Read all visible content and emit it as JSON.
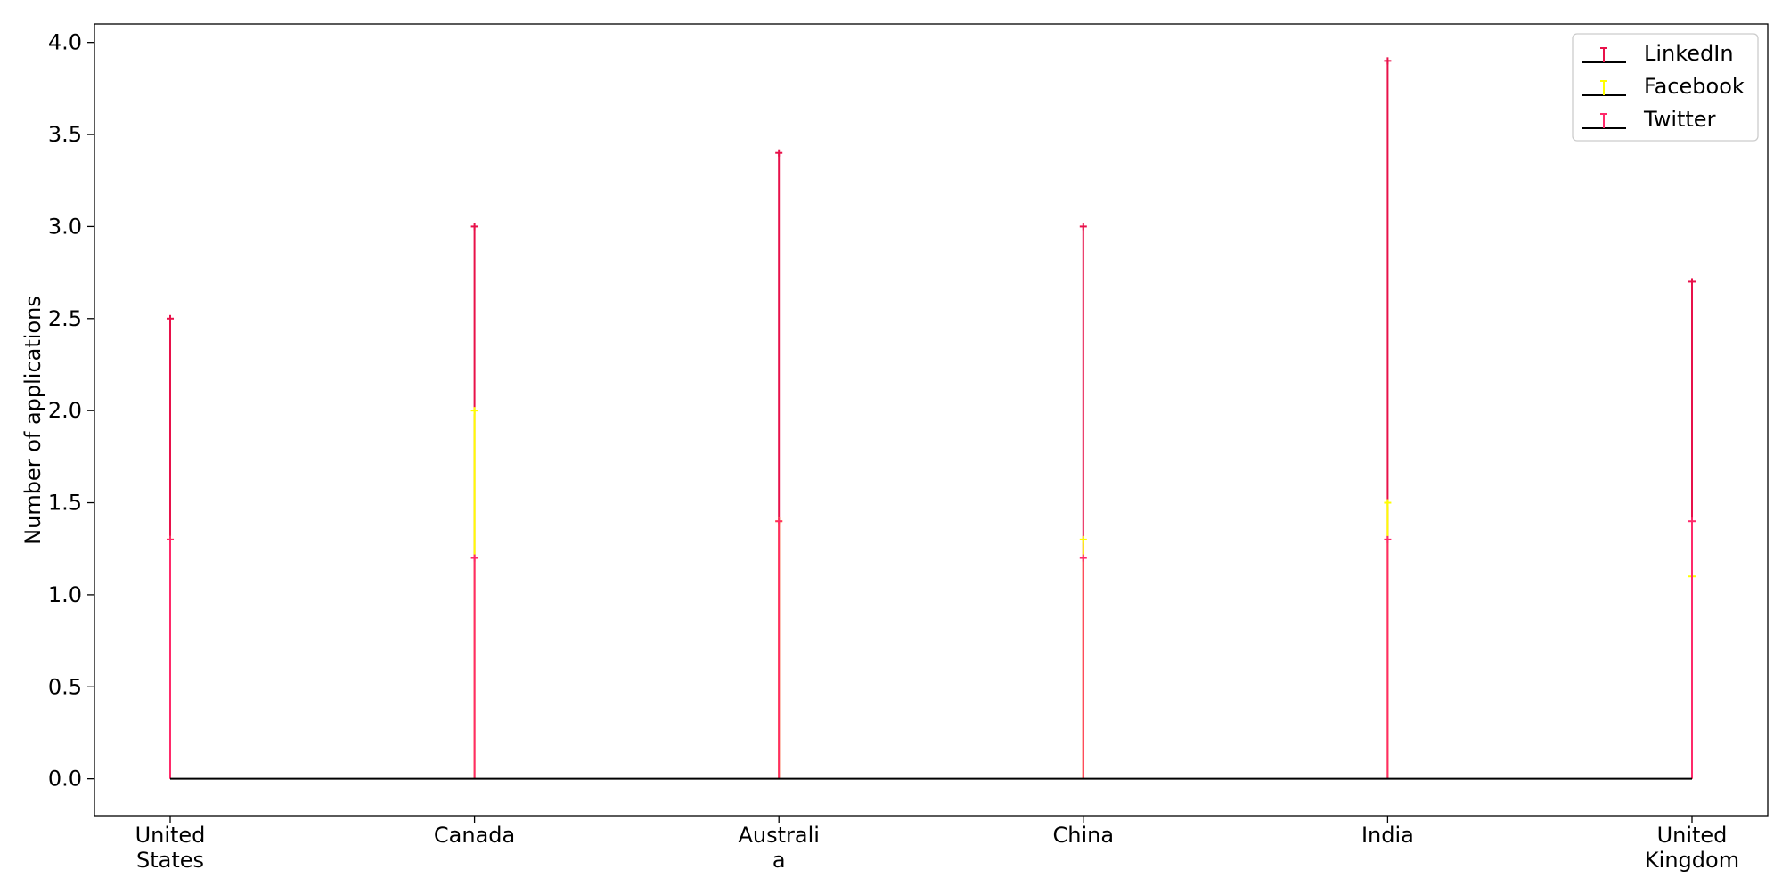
{
  "chart_data": {
    "type": "stem",
    "categories": [
      [
        "United",
        "States"
      ],
      [
        "Canada"
      ],
      [
        "Australi",
        "a"
      ],
      [
        "China"
      ],
      [
        "India"
      ],
      [
        "United",
        "Kingdom"
      ]
    ],
    "series": [
      {
        "name": "LinkedIn",
        "values": [
          2.5,
          3.0,
          3.4,
          3.0,
          3.9,
          2.7
        ],
        "color": "#e8114a"
      },
      {
        "name": "Facebook",
        "values": [
          1.3,
          2.0,
          1.4,
          1.3,
          1.5,
          1.1
        ],
        "color": "#ffff00"
      },
      {
        "name": "Twitter",
        "values": [
          1.3,
          1.2,
          1.4,
          1.2,
          1.3,
          1.4
        ],
        "color": "#ff2a6a"
      }
    ],
    "baseline": 0.0,
    "baseline_color": "#000000",
    "xlabel": "",
    "ylabel": "Number of applications",
    "ylim": [
      -0.2,
      4.1
    ],
    "yticks": [
      "0.0",
      "0.5",
      "1.0",
      "1.5",
      "2.0",
      "2.5",
      "3.0",
      "3.5",
      "4.0"
    ],
    "legend_position": "top-right",
    "grid": false
  }
}
